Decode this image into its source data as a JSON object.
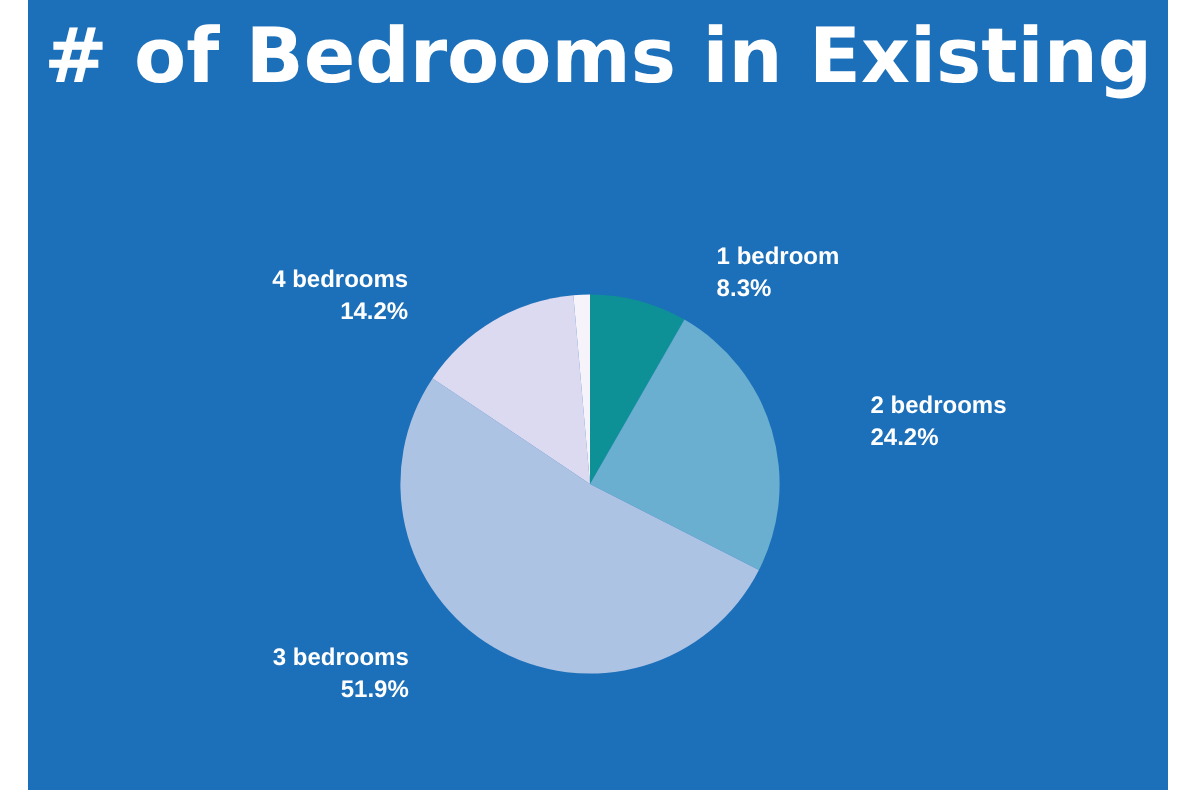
{
  "chart_data": {
    "type": "pie",
    "title": "# of Bedrooms in Existing",
    "categories": [
      "1 bedroom",
      "2 bedrooms",
      "3 bedrooms",
      "4 bedrooms",
      null
    ],
    "values": [
      8.3,
      24.2,
      51.9,
      14.2,
      1.4
    ],
    "value_labels": [
      "8.3%",
      "24.2%",
      "51.9%",
      "14.2%",
      null
    ],
    "colors": [
      "#0e9196",
      "#6aaed0",
      "#adc3e4",
      "#dcdaf0",
      "#f7f3fb"
    ]
  }
}
